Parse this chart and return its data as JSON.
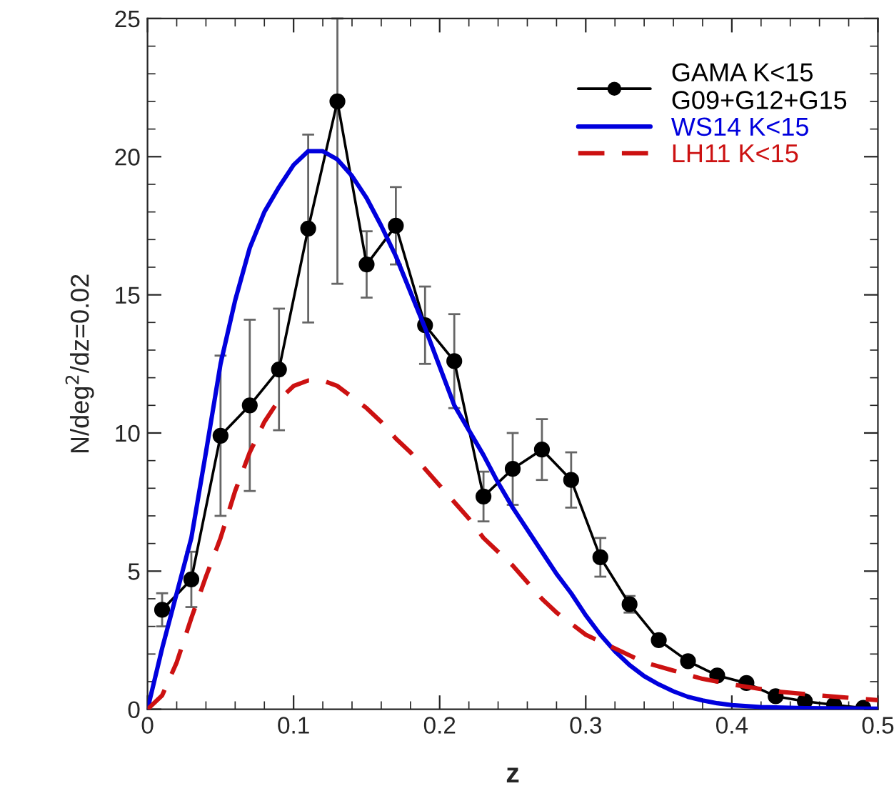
{
  "chart_data": {
    "type": "line",
    "xlabel": "z",
    "ylabel": "N/deg$^{2}$/dz=0.02",
    "xlim": [
      0,
      0.5
    ],
    "ylim": [
      0,
      25
    ],
    "xticks": [
      0,
      0.1,
      0.2,
      0.3,
      0.4,
      0.5
    ],
    "yticks": [
      0,
      5,
      10,
      15,
      20,
      25
    ],
    "grid": false,
    "legend": "top right",
    "series": [
      {
        "name": "GAMA K<15\nG09+G12+G15",
        "color": "#000000",
        "marker": "circle",
        "line_style": "solid",
        "x": [
          0.01,
          0.03,
          0.05,
          0.07,
          0.09,
          0.11,
          0.13,
          0.15,
          0.17,
          0.19,
          0.21,
          0.23,
          0.25,
          0.27,
          0.29,
          0.31,
          0.33,
          0.35,
          0.37,
          0.39,
          0.41,
          0.43,
          0.45,
          0.47,
          0.49
        ],
        "values": [
          3.6,
          4.7,
          9.9,
          11.0,
          12.3,
          17.4,
          22.0,
          16.1,
          17.5,
          13.9,
          12.6,
          7.7,
          8.7,
          9.4,
          8.3,
          5.5,
          3.8,
          2.5,
          1.74,
          1.22,
          0.95,
          0.47,
          0.29,
          0.16,
          0.05
        ],
        "errors": [
          0.6,
          1.0,
          2.9,
          3.1,
          2.2,
          3.4,
          [
            15.4,
            25
          ],
          1.2,
          1.4,
          1.4,
          1.7,
          0.9,
          1.3,
          1.1,
          1.0,
          0.7,
          0.3,
          null,
          null,
          null,
          null,
          null,
          null,
          null,
          null
        ]
      },
      {
        "name": "WS14 K<15",
        "color": "#0000dd",
        "marker": "none",
        "line_style": "solid",
        "x": [
          0,
          0.01,
          0.02,
          0.03,
          0.04,
          0.05,
          0.06,
          0.07,
          0.08,
          0.09,
          0.1,
          0.11,
          0.12,
          0.13,
          0.14,
          0.15,
          0.16,
          0.17,
          0.18,
          0.19,
          0.2,
          0.21,
          0.22,
          0.23,
          0.24,
          0.25,
          0.26,
          0.27,
          0.28,
          0.29,
          0.3,
          0.31,
          0.32,
          0.33,
          0.34,
          0.35,
          0.36,
          0.37,
          0.38,
          0.39,
          0.4,
          0.42,
          0.45,
          0.5
        ],
        "values": [
          0,
          2.2,
          4.2,
          6.2,
          9.3,
          12.5,
          14.8,
          16.7,
          18.0,
          18.9,
          19.7,
          20.2,
          20.2,
          19.9,
          19.3,
          18.5,
          17.5,
          16.4,
          15.1,
          13.8,
          12.4,
          11.0,
          10.1,
          9.2,
          8.2,
          7.3,
          6.5,
          5.7,
          4.9,
          4.2,
          3.4,
          2.7,
          2.1,
          1.6,
          1.2,
          0.9,
          0.65,
          0.45,
          0.32,
          0.22,
          0.15,
          0.08,
          0.04,
          0.02
        ]
      },
      {
        "name": "LH11 K<15",
        "color": "#cc1111",
        "marker": "none",
        "line_style": "dashed",
        "x": [
          0,
          0.01,
          0.02,
          0.03,
          0.04,
          0.05,
          0.06,
          0.07,
          0.08,
          0.09,
          0.1,
          0.11,
          0.12,
          0.13,
          0.14,
          0.15,
          0.16,
          0.17,
          0.18,
          0.19,
          0.2,
          0.21,
          0.22,
          0.23,
          0.24,
          0.25,
          0.26,
          0.27,
          0.28,
          0.29,
          0.3,
          0.32,
          0.34,
          0.36,
          0.38,
          0.4,
          0.43,
          0.46,
          0.5
        ],
        "values": [
          0,
          0.5,
          1.7,
          3.3,
          4.8,
          6.2,
          7.9,
          9.3,
          10.4,
          11.2,
          11.7,
          11.9,
          11.9,
          11.7,
          11.3,
          10.9,
          10.4,
          9.8,
          9.3,
          8.7,
          8.1,
          7.5,
          6.9,
          6.2,
          5.7,
          5.2,
          4.6,
          4.0,
          3.5,
          3.1,
          2.7,
          2.2,
          1.7,
          1.4,
          1.1,
          0.9,
          0.65,
          0.5,
          0.33
        ]
      }
    ]
  }
}
